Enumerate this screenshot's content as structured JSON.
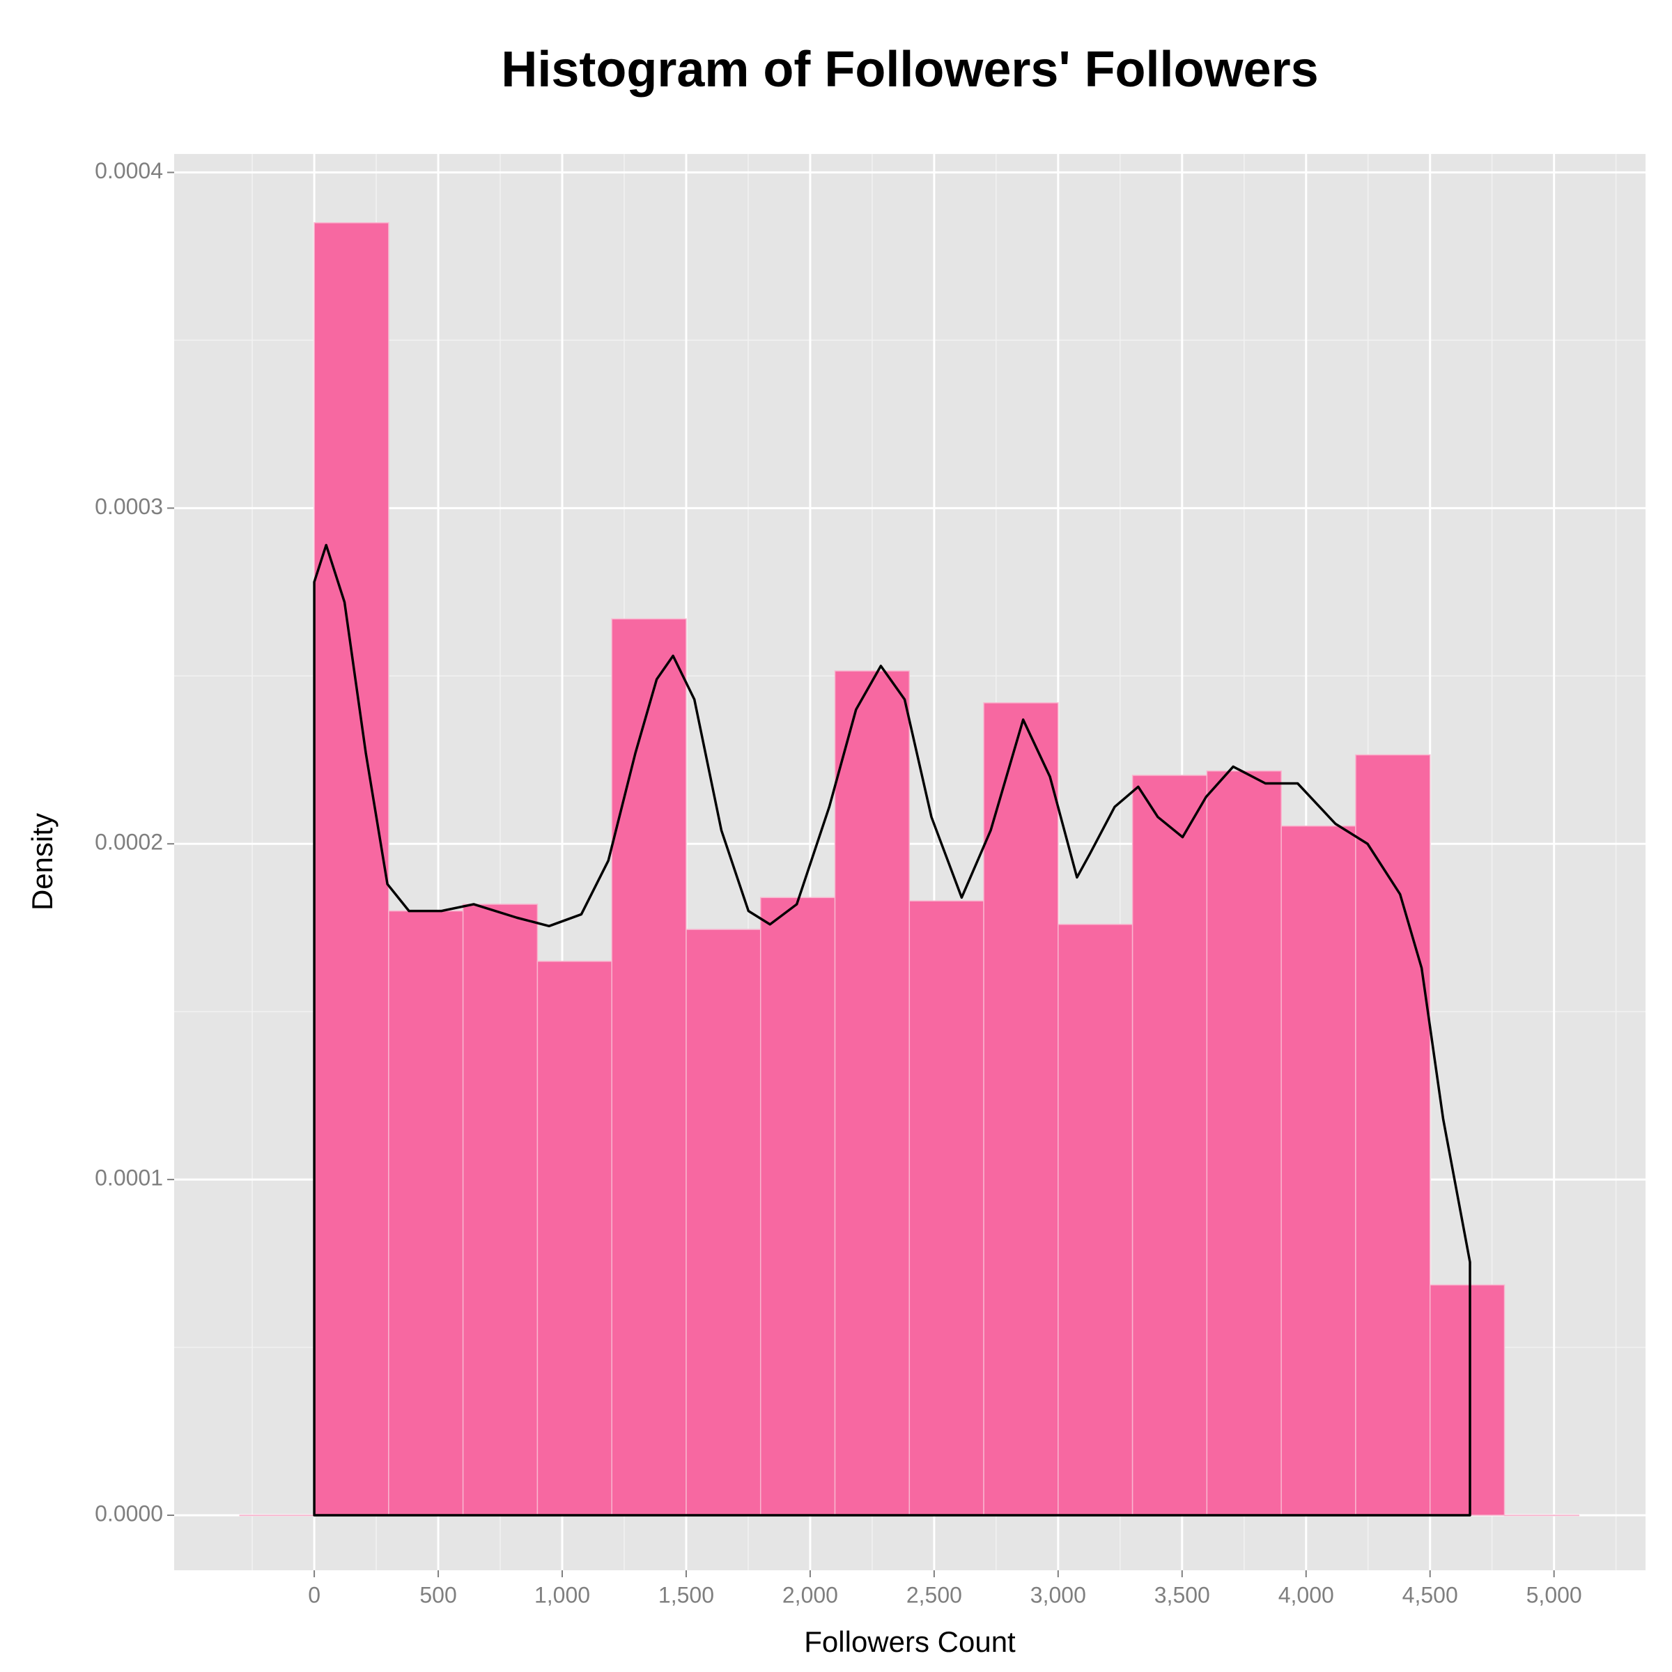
{
  "chart_data": {
    "type": "histogram",
    "title": "Histogram of Followers' Followers",
    "x_label": "Followers Count",
    "y_label": "Density",
    "bins": [
      -300,
      0,
      300,
      600,
      900,
      1200,
      1500,
      1800,
      2100,
      2400,
      2700,
      3000,
      3300,
      3600,
      3900,
      4200,
      4500,
      4800,
      5100
    ],
    "values": [
      0,
      0.000385,
      0.00018,
      0.000182,
      0.000165,
      0.000267,
      0.0001745,
      0.000184,
      0.0002515,
      0.000183,
      0.000242,
      0.000176,
      0.0002204,
      0.0002217,
      0.0002053,
      0.0002265,
      6.86e-05,
      0
    ],
    "color": "#f768a1",
    "density": {
      "color": "#000000",
      "x": [
        0,
        0,
        48,
        122,
        208,
        295,
        382,
        513,
        643,
        817,
        947,
        1077,
        1186,
        1295,
        1381,
        1447,
        1533,
        1642,
        1751,
        1838,
        1946,
        2077,
        2185,
        2285,
        2381,
        2489,
        2611,
        2728,
        2859,
        2967,
        3076,
        3128,
        3228,
        3323,
        3402,
        3502,
        3597,
        3706,
        3836,
        3966,
        4118,
        4248,
        4379,
        4466,
        4553,
        4661,
        4661
      ],
      "values": [
        0,
        0.000278,
        0.000289,
        0.000272,
        0.000227,
        0.000188,
        0.00018,
        0.00018,
        0.000182,
        0.000178,
        0.0001755,
        0.000179,
        0.000195,
        0.000227,
        0.000249,
        0.000256,
        0.000243,
        0.000204,
        0.00018,
        0.000176,
        0.000182,
        0.000211,
        0.00024,
        0.000253,
        0.000243,
        0.000208,
        0.000184,
        0.000204,
        0.000237,
        0.00022,
        0.00019,
        0.000197,
        0.000211,
        0.000217,
        0.000208,
        0.000202,
        0.000214,
        0.000223,
        0.000218,
        0.000218,
        0.000206,
        0.0002,
        0.000185,
        0.000163,
        0.000118,
        7.54e-05,
        0
      ]
    },
    "xlim": [
      -565,
      5369
    ],
    "ylim": [
      -1.64e-05,
      0.0004055
    ],
    "xticks": [
      0,
      500,
      {
        "value": 1000,
        "label": "1,000"
      },
      {
        "value": 1500,
        "label": "1,500"
      },
      {
        "value": 2000,
        "label": "2,000"
      },
      {
        "value": 2500,
        "label": "2,500"
      },
      {
        "value": 3000,
        "label": "3,000"
      },
      {
        "value": 3500,
        "label": "3,500"
      },
      {
        "value": 4000,
        "label": "4,000"
      },
      {
        "value": 4500,
        "label": "4,500"
      },
      {
        "value": 5000,
        "label": "5,000"
      }
    ],
    "yticks": [
      {
        "value": 0,
        "label": "0.0000"
      },
      {
        "value": 0.0001,
        "label": "0.0001"
      },
      {
        "value": 0.0002,
        "label": "0.0002"
      },
      {
        "value": 0.0003,
        "label": "0.0003"
      },
      {
        "value": 0.0004,
        "label": "0.0004"
      }
    ],
    "grid": true
  }
}
